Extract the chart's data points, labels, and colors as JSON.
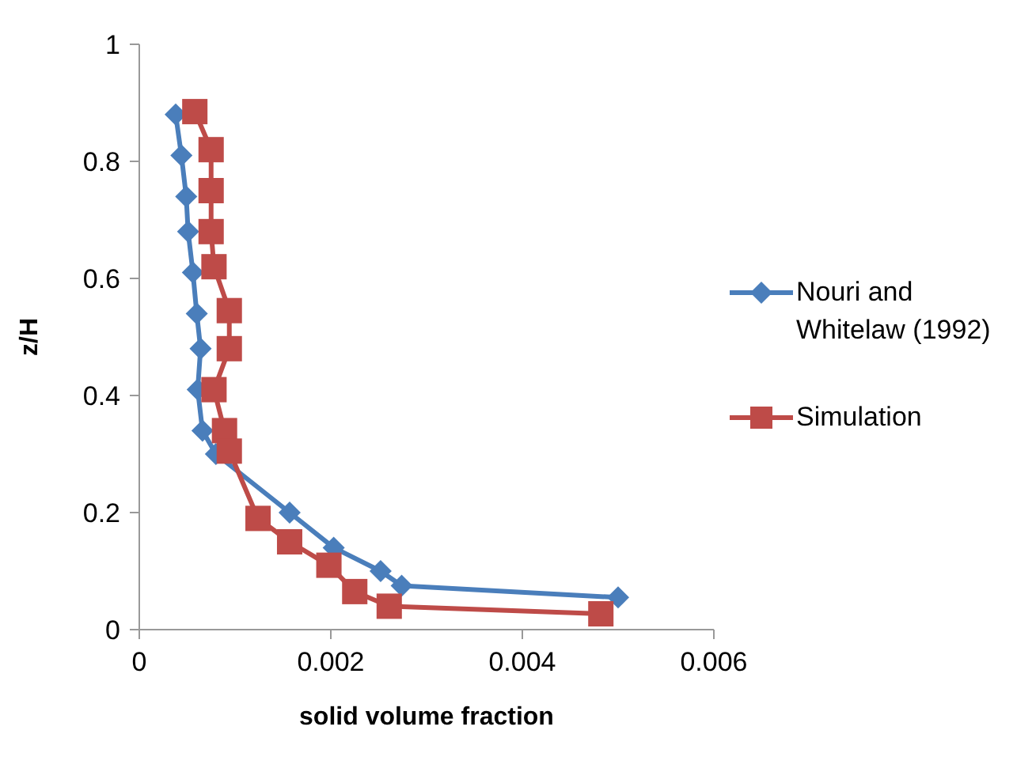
{
  "chart_data": {
    "type": "line",
    "xlabel": "solid volume fraction",
    "ylabel": "z/H",
    "xlim": [
      0,
      0.006
    ],
    "xticks": [
      0,
      0.002,
      0.004,
      0.006
    ],
    "ylim": [
      0,
      1
    ],
    "yticks": [
      0,
      0.2,
      0.4,
      0.6,
      0.8,
      1
    ],
    "grid": false,
    "legend": "right",
    "series": [
      {
        "name": "Nouri and Whitelaw (1992)",
        "color": "#4a7ebb",
        "marker": "diamond",
        "x": [
          0.00038,
          0.00044,
          0.00049,
          0.00051,
          0.00056,
          0.0006,
          0.00064,
          0.00061,
          0.00066,
          0.0008,
          0.00157,
          0.00203,
          0.00252,
          0.00274,
          0.005
        ],
        "values": [
          0.88,
          0.81,
          0.74,
          0.68,
          0.61,
          0.54,
          0.48,
          0.41,
          0.34,
          0.3,
          0.2,
          0.14,
          0.1,
          0.075,
          0.055
        ]
      },
      {
        "name": "Simulation",
        "color": "#be4b48",
        "marker": "square",
        "x": [
          0.00058,
          0.00075,
          0.00075,
          0.00075,
          0.00078,
          0.00094,
          0.00094,
          0.00078,
          0.00089,
          0.00094,
          0.00124,
          0.00157,
          0.00198,
          0.00225,
          0.00261,
          0.00482
        ],
        "values": [
          0.885,
          0.82,
          0.75,
          0.68,
          0.62,
          0.545,
          0.48,
          0.41,
          0.34,
          0.305,
          0.19,
          0.15,
          0.11,
          0.065,
          0.04,
          0.027
        ]
      }
    ]
  }
}
